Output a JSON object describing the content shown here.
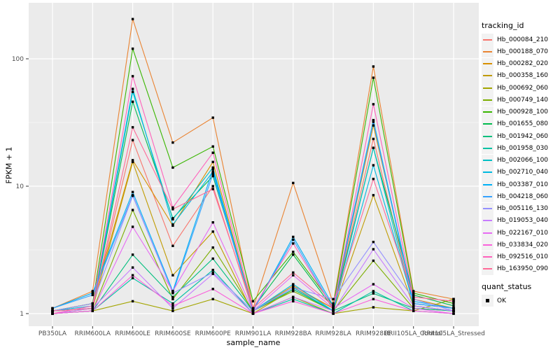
{
  "legend": {
    "tracking_title": "tracking_id",
    "quant_title": "quant_status",
    "quant_label": "OK"
  },
  "chart_data": {
    "type": "line",
    "title": "",
    "xlabel": "sample_name",
    "ylabel": "FPKM + 1",
    "y_scale": "log10",
    "ylim": [
      1,
      275
    ],
    "grid": true,
    "legend_position": "right",
    "point_marker": "black-square",
    "quant_status": "OK",
    "y_ticks": [
      {
        "value": 1,
        "label": "1"
      },
      {
        "value": 10,
        "label": "10"
      },
      {
        "value": 100,
        "label": "100"
      }
    ],
    "y_minor_ticks": [
      3.1623,
      31.623
    ],
    "categories": [
      "PB350LA",
      "RRIM600LA",
      "RRIM600LE",
      "RRIM600SE",
      "RRIM600PE",
      "RRIM901LA",
      "RRIM928BA",
      "RRIM928LA",
      "RRIM928LE",
      "RRII105LA_Control",
      "RRII105LA_Stressed"
    ],
    "style": {
      "panel_bg": "#EBEBEB",
      "grid_color": "#FFFFFF",
      "tick_color": "#333333",
      "tick_label_color": "#4D4D4D",
      "point_color": "#000000",
      "legend_key_bg": "#F2F2F2"
    },
    "series": [
      {
        "name": "Hb_000084_210",
        "color": "#F8766D",
        "values": [
          1.05,
          1.1,
          23,
          3.4,
          10,
          1.05,
          1.6,
          1.1,
          23.5,
          1.2,
          1.1
        ]
      },
      {
        "name": "Hb_000188_070",
        "color": "#EA8331",
        "values": [
          1.1,
          1.5,
          205,
          22,
          34.5,
          1.1,
          10.6,
          1.2,
          87,
          1.5,
          1.3
        ]
      },
      {
        "name": "Hb_000282_020",
        "color": "#D89000",
        "values": [
          1.05,
          1.2,
          16,
          4.9,
          15.5,
          1.05,
          1.65,
          1.1,
          30,
          1.3,
          1.1
        ]
      },
      {
        "name": "Hb_000358_160",
        "color": "#C09B00",
        "values": [
          1.0,
          1.1,
          15.5,
          2.0,
          4.4,
          1.0,
          1.55,
          1.05,
          8.5,
          1.15,
          1.05
        ]
      },
      {
        "name": "Hb_000692_060",
        "color": "#A3A500",
        "values": [
          1.0,
          1.05,
          1.25,
          1.05,
          1.3,
          1.0,
          1.35,
          1.0,
          1.12,
          1.05,
          1.3
        ]
      },
      {
        "name": "Hb_000749_140",
        "color": "#7CAE00",
        "values": [
          1.0,
          1.05,
          6.5,
          1.3,
          3.3,
          1.05,
          1.5,
          1.05,
          2.6,
          1.1,
          1.05
        ]
      },
      {
        "name": "Hb_000928_100",
        "color": "#39B600",
        "values": [
          1.05,
          1.2,
          120,
          14,
          20.5,
          1.25,
          3.05,
          1.15,
          71,
          1.45,
          1.2
        ]
      },
      {
        "name": "Hb_001655_080",
        "color": "#00BB4E",
        "values": [
          1.05,
          1.1,
          46,
          5.6,
          12,
          1.1,
          2.9,
          1.1,
          20,
          1.4,
          1.15
        ]
      },
      {
        "name": "Hb_001942_060",
        "color": "#00BF7D",
        "values": [
          1.0,
          1.05,
          2.9,
          1.35,
          2.7,
          1.05,
          1.55,
          1.05,
          1.44,
          1.1,
          1.05
        ]
      },
      {
        "name": "Hb_001958_030",
        "color": "#00C1A3",
        "values": [
          1.0,
          1.05,
          1.9,
          1.2,
          2.2,
          1.0,
          1.3,
          1.0,
          1.5,
          1.05,
          1.0
        ]
      },
      {
        "name": "Hb_002066_100",
        "color": "#00BFC4",
        "values": [
          1.05,
          1.1,
          55,
          5.5,
          14,
          1.05,
          1.6,
          1.05,
          20,
          1.15,
          1.05
        ]
      },
      {
        "name": "Hb_002710_040",
        "color": "#00BAE0",
        "values": [
          1.05,
          1.15,
          58,
          5.0,
          13,
          1.05,
          1.7,
          1.05,
          14.6,
          1.2,
          1.1
        ]
      },
      {
        "name": "Hb_003387_010",
        "color": "#00B0F6",
        "values": [
          1.1,
          1.45,
          9.0,
          1.5,
          13.6,
          1.05,
          4.0,
          1.15,
          33,
          1.25,
          1.1
        ]
      },
      {
        "name": "Hb_004218_060",
        "color": "#35A2FF",
        "values": [
          1.1,
          1.4,
          8.5,
          1.45,
          12.5,
          1.05,
          3.8,
          1.1,
          32,
          1.2,
          1.1
        ]
      },
      {
        "name": "Hb_005116_130",
        "color": "#9590FF",
        "values": [
          1.05,
          1.2,
          8.4,
          1.45,
          2.1,
          1.05,
          1.6,
          1.3,
          3.65,
          1.3,
          1.05
        ]
      },
      {
        "name": "Hb_019053_040",
        "color": "#C77CFF",
        "values": [
          1.0,
          1.1,
          2.3,
          1.1,
          2.05,
          1.0,
          1.35,
          1.05,
          3.2,
          1.15,
          1.05
        ]
      },
      {
        "name": "Hb_022167_010",
        "color": "#E76BF3",
        "values": [
          1.0,
          1.05,
          4.8,
          1.5,
          5.2,
          1.05,
          2.0,
          1.1,
          1.7,
          1.1,
          1.0
        ]
      },
      {
        "name": "Hb_033834_020",
        "color": "#FA62DB",
        "values": [
          1.0,
          1.05,
          2.0,
          1.15,
          1.56,
          1.0,
          1.25,
          1.0,
          1.3,
          1.05,
          1.0
        ]
      },
      {
        "name": "Hb_092516_010",
        "color": "#FF62BC",
        "values": [
          1.0,
          1.15,
          73,
          6.8,
          18.3,
          1.1,
          3.55,
          1.1,
          44,
          1.35,
          1.25
        ]
      },
      {
        "name": "Hb_163950_090",
        "color": "#FF6A98",
        "values": [
          1.05,
          1.1,
          29,
          6.6,
          9.5,
          1.1,
          2.1,
          1.15,
          11.4,
          1.35,
          1.25
        ]
      }
    ]
  }
}
